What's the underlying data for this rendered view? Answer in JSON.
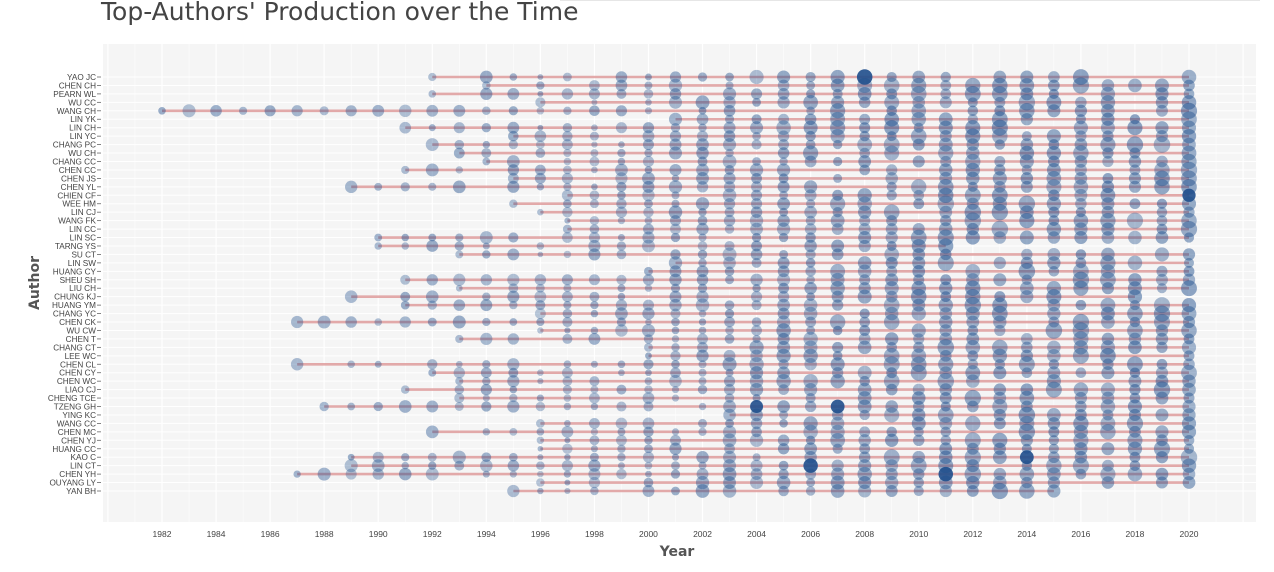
{
  "chart_data": {
    "type": "scatter",
    "title": "Top-Authors' Production over the Time",
    "xlabel": "Year",
    "ylabel": "Author",
    "xlim": [
      1979.5,
      2022.5
    ],
    "x_ticks": [
      1982,
      1984,
      1986,
      1988,
      1990,
      1992,
      1994,
      1996,
      1998,
      2000,
      2002,
      2004,
      2006,
      2008,
      2010,
      2012,
      2014,
      2016,
      2018,
      2020
    ],
    "grid": true,
    "legend": "none",
    "colors": {
      "point": "#1f4e8c",
      "segment": "#d98e8e",
      "panel": "#f5f5f5",
      "grid": "#ffffff"
    },
    "authors": [
      {
        "name": "YAO JC",
        "start": 1992,
        "end": 2020
      },
      {
        "name": "CHEN CH",
        "start": 1994,
        "end": 2020
      },
      {
        "name": "PEARN WL",
        "start": 1992,
        "end": 2020
      },
      {
        "name": "WU CC",
        "start": 1996,
        "end": 2020
      },
      {
        "name": "WANG CH",
        "start": 1982,
        "end": 2020
      },
      {
        "name": "LIN YK",
        "start": 2001,
        "end": 2020
      },
      {
        "name": "LIN CH",
        "start": 1991,
        "end": 2020
      },
      {
        "name": "LIN YC",
        "start": 1995,
        "end": 2020
      },
      {
        "name": "CHANG PC",
        "start": 1992,
        "end": 2020
      },
      {
        "name": "WU CH",
        "start": 1993,
        "end": 2020
      },
      {
        "name": "CHANG CC",
        "start": 1994,
        "end": 2020
      },
      {
        "name": "CHEN CC",
        "start": 1991,
        "end": 2020
      },
      {
        "name": "CHEN JS",
        "start": 1995,
        "end": 2020
      },
      {
        "name": "CHEN YL",
        "start": 1989,
        "end": 2020
      },
      {
        "name": "CHIEN CF",
        "start": 1997,
        "end": 2020
      },
      {
        "name": "WEE HM",
        "start": 1995,
        "end": 2020
      },
      {
        "name": "LIN CJ",
        "start": 1996,
        "end": 2020
      },
      {
        "name": "WANG FK",
        "start": 1997,
        "end": 2020
      },
      {
        "name": "LIN CC",
        "start": 1997,
        "end": 2020
      },
      {
        "name": "LIN SC",
        "start": 1990,
        "end": 2020
      },
      {
        "name": "TARNG YS",
        "start": 1990,
        "end": 2011
      },
      {
        "name": "SU CT",
        "start": 1993,
        "end": 2020
      },
      {
        "name": "LIN SW",
        "start": 2001,
        "end": 2020
      },
      {
        "name": "HUANG CY",
        "start": 2000,
        "end": 2020
      },
      {
        "name": "SHEU SH",
        "start": 1991,
        "end": 2020
      },
      {
        "name": "LIU CH",
        "start": 1993,
        "end": 2020
      },
      {
        "name": "CHUNG KJ",
        "start": 1989,
        "end": 2018
      },
      {
        "name": "HUANG YM",
        "start": 1991,
        "end": 2020
      },
      {
        "name": "CHANG YC",
        "start": 1996,
        "end": 2020
      },
      {
        "name": "CHEN CK",
        "start": 1987,
        "end": 2020
      },
      {
        "name": "WU CW",
        "start": 1996,
        "end": 2020
      },
      {
        "name": "CHEN T",
        "start": 1993,
        "end": 2020
      },
      {
        "name": "CHANG CT",
        "start": 2000,
        "end": 2020
      },
      {
        "name": "LEE WC",
        "start": 2000,
        "end": 2020
      },
      {
        "name": "CHEN CL",
        "start": 1987,
        "end": 2020
      },
      {
        "name": "CHEN CY",
        "start": 1992,
        "end": 2020
      },
      {
        "name": "CHEN WC",
        "start": 1993,
        "end": 2020
      },
      {
        "name": "LIAO CJ",
        "start": 1991,
        "end": 2020
      },
      {
        "name": "CHENG TCE",
        "start": 1993,
        "end": 2020
      },
      {
        "name": "TZENG GH",
        "start": 1988,
        "end": 2020
      },
      {
        "name": "YING KC",
        "start": 2003,
        "end": 2020
      },
      {
        "name": "WANG CC",
        "start": 1996,
        "end": 2020
      },
      {
        "name": "CHEN MC",
        "start": 1992,
        "end": 2020
      },
      {
        "name": "CHEN YJ",
        "start": 1996,
        "end": 2020
      },
      {
        "name": "HUANG CC",
        "start": 1996,
        "end": 2020
      },
      {
        "name": "KAO C",
        "start": 1989,
        "end": 2020
      },
      {
        "name": "LIN CT",
        "start": 1989,
        "end": 2020
      },
      {
        "name": "CHEN YH",
        "start": 1987,
        "end": 2020
      },
      {
        "name": "OUYANG LY",
        "start": 1996,
        "end": 2020
      },
      {
        "name": "YAN BH",
        "start": 1995,
        "end": 2015
      }
    ],
    "highlighted_points": [
      {
        "author": "TZENG GH",
        "year": 2004
      },
      {
        "author": "TZENG GH",
        "year": 2007
      },
      {
        "author": "LIN CT",
        "year": 2006
      },
      {
        "author": "CHEN YH",
        "year": 2011
      },
      {
        "author": "CHEN T",
        "year": 2013
      },
      {
        "author": "CHIEN CF",
        "year": 2020
      },
      {
        "author": "YAO JC",
        "year": 2008
      },
      {
        "author": "KAO C",
        "year": 2014
      }
    ]
  }
}
